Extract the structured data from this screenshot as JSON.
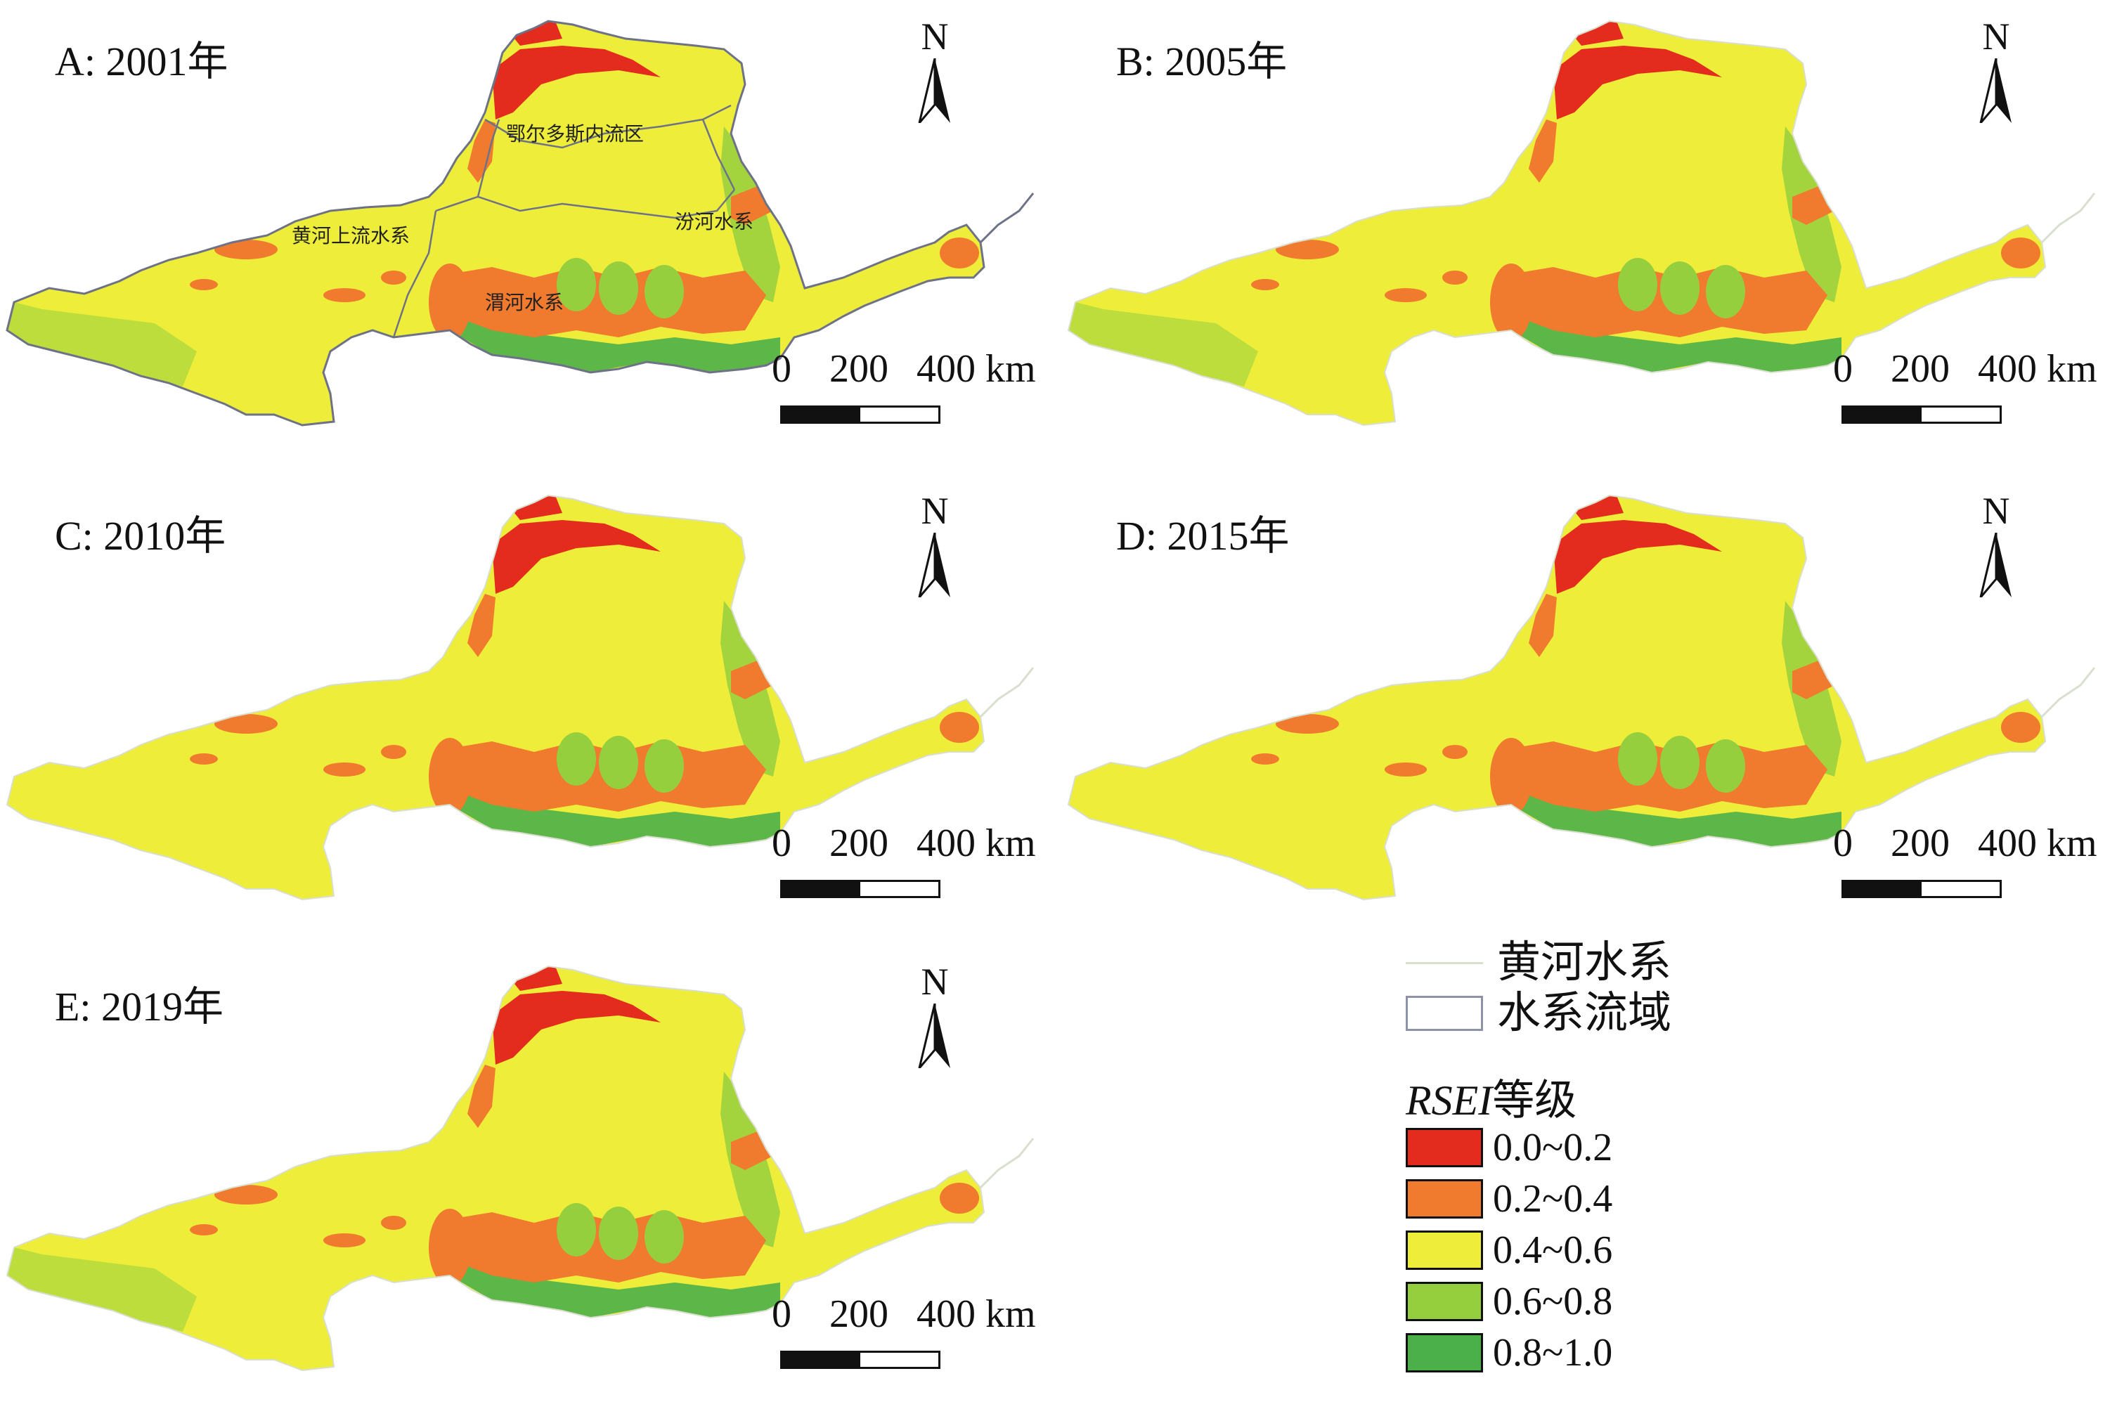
{
  "panels": [
    {
      "id": "a",
      "title": "A: 2001年",
      "show_subbasins": true
    },
    {
      "id": "b",
      "title": "B: 2005年",
      "show_subbasins": false
    },
    {
      "id": "c",
      "title": "C: 2010年",
      "show_subbasins": false
    },
    {
      "id": "d",
      "title": "D: 2015年",
      "show_subbasins": false
    },
    {
      "id": "e",
      "title": "E: 2019年",
      "show_subbasins": false
    }
  ],
  "north_label": "N",
  "scale_labels": [
    "0",
    "200",
    "400 km"
  ],
  "region_labels": {
    "ordos": "鄂尔多斯内流区",
    "upper": "黄河上流水系",
    "fen": "汾河水系",
    "wei": "渭河水系"
  },
  "legend": {
    "river": "黄河水系",
    "basin": "水系流域",
    "title_italic": "RSEI",
    "title_rest": "等级",
    "classes": [
      {
        "label": "0.0~0.2",
        "color": "#e32b1e"
      },
      {
        "label": "0.2~0.4",
        "color": "#f07a2e"
      },
      {
        "label": "0.4~0.6",
        "color": "#eded3a"
      },
      {
        "label": "0.6~0.8",
        "color": "#96cf3e"
      },
      {
        "label": "0.8~1.0",
        "color": "#4bb04a"
      }
    ]
  }
}
